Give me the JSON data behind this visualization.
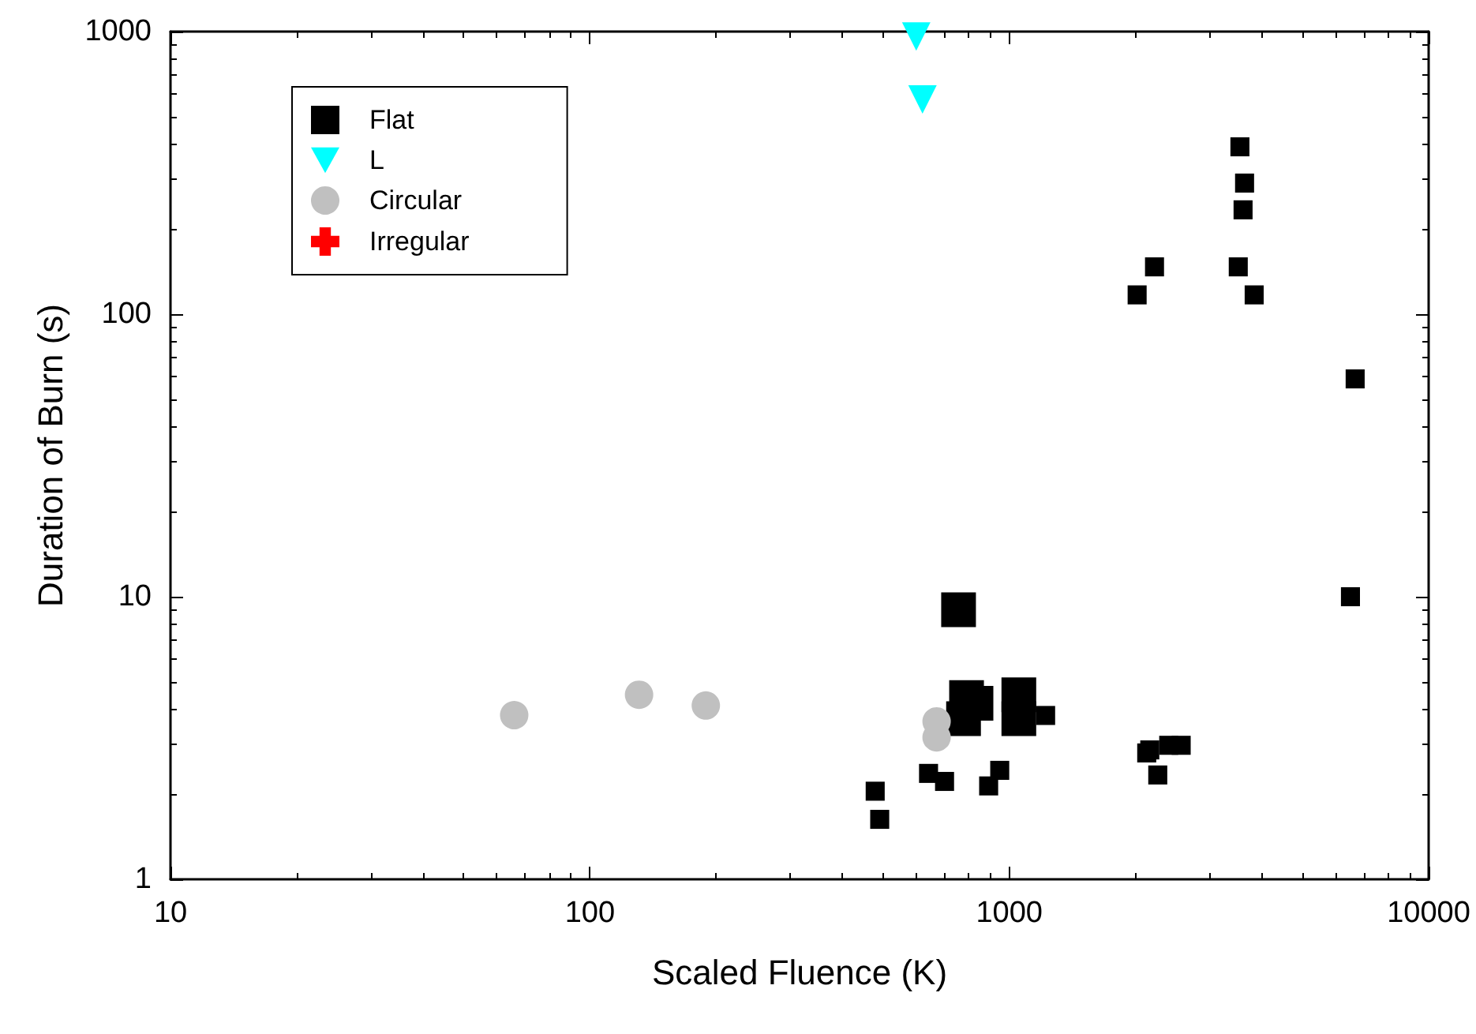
{
  "chart_data": {
    "type": "scatter",
    "xlabel": "Scaled Fluence (K)",
    "ylabel": "Duration of Burn (s)",
    "log": "xy",
    "xlim": [
      10,
      10000
    ],
    "ylim": [
      1,
      1000
    ],
    "xticks": [
      10,
      100,
      1000,
      10000
    ],
    "yticks": [
      1,
      10,
      100,
      1000
    ],
    "grid": false,
    "legend": "top left",
    "series": [
      {
        "name": "Flat",
        "type": "bubble",
        "marker": "square",
        "color": "#000000",
        "x": [
          757,
          791,
          833,
          778,
          1054,
          1054,
          479,
          491,
          642,
          701,
          893,
          949,
          1221,
          2127,
          2163,
          2400,
          2570,
          2260,
          6510,
          6680,
          3548,
          3640,
          3610,
          2220,
          2018,
          3516,
          3837
        ],
        "values": [
          9,
          4.4,
          4.2,
          3.7,
          4.5,
          3.7,
          2.05,
          1.63,
          2.37,
          2.22,
          2.14,
          2.43,
          3.8,
          2.8,
          2.87,
          2.98,
          2.98,
          2.34,
          10,
          59,
          391,
          291,
          234,
          147,
          117,
          147,
          117
        ],
        "sizes": [
          1,
          1,
          1,
          1,
          1,
          1,
          0.3,
          0.3,
          0.3,
          0.3,
          0.3,
          0.3,
          0.3,
          0.3,
          0.3,
          0.3,
          0.3,
          0.3,
          0.3,
          0.3,
          0.3,
          0.3,
          0.3,
          0.3,
          0.3,
          0.3,
          0.3
        ]
      },
      {
        "name": "L",
        "marker": "triangle",
        "color": "#00ffff",
        "x": [
          600,
          621
        ],
        "values": [
          960,
          575
        ]
      },
      {
        "name": "Circular",
        "marker": "circle",
        "color": "#c0c0c0",
        "x": [
          66,
          131,
          189,
          671,
          671
        ],
        "values": [
          3.81,
          4.5,
          4.12,
          3.62,
          3.18
        ]
      },
      {
        "name": "Irregular",
        "marker": "cross",
        "color": "#ff0000"
      }
    ]
  }
}
